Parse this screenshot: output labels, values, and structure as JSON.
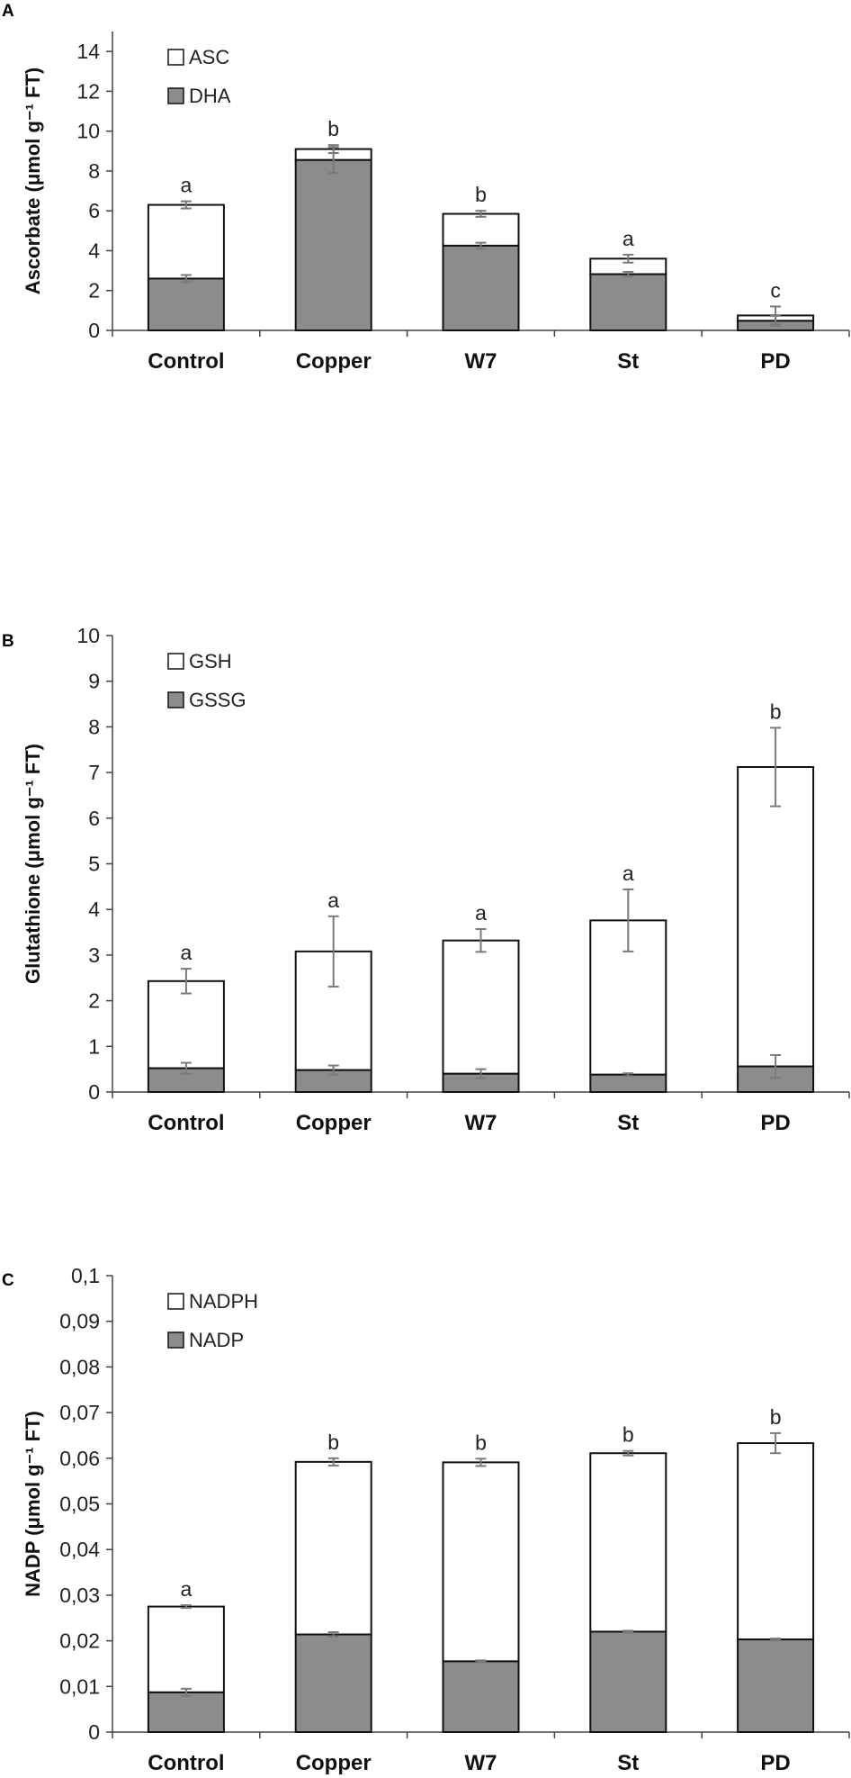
{
  "chart_data": [
    {
      "panel": "A",
      "type": "bar",
      "stacked": true,
      "categories": [
        "Control",
        "Copper",
        "W7",
        "St",
        "PD"
      ],
      "series": [
        {
          "name": "DHA",
          "color": "#8c8c8c",
          "values": [
            2.6,
            8.55,
            4.25,
            2.82,
            0.48
          ],
          "errors": [
            0.18,
            0.65,
            0.15,
            0.12,
            0.25
          ]
        },
        {
          "name": "ASC",
          "color": "#ffffff",
          "values": [
            3.7,
            0.55,
            1.6,
            0.78,
            0.27
          ],
          "errors": [
            0.18,
            0.2,
            0.15,
            0.2,
            0.45
          ]
        }
      ],
      "letters": [
        "a",
        "b",
        "b",
        "a",
        "c"
      ],
      "ylabel": "Ascorbate (μmol g⁻¹ FT)",
      "ylim": [
        0,
        15
      ],
      "yticks": [
        0,
        2,
        4,
        6,
        8,
        10,
        12,
        14
      ],
      "ytick_labels": [
        "0",
        "2",
        "4",
        "6",
        "8",
        "10",
        "12",
        "14"
      ],
      "legend_position": "top-left",
      "legend_order": [
        "ASC",
        "DHA"
      ]
    },
    {
      "panel": "B",
      "type": "bar",
      "stacked": true,
      "categories": [
        "Control",
        "Copper",
        "W7",
        "St",
        "PD"
      ],
      "series": [
        {
          "name": "GSSG",
          "color": "#8c8c8c",
          "values": [
            0.52,
            0.48,
            0.4,
            0.38,
            0.56
          ],
          "errors": [
            0.12,
            0.1,
            0.1,
            0.03,
            0.25
          ]
        },
        {
          "name": "GSH",
          "color": "#ffffff",
          "values": [
            1.91,
            2.6,
            2.92,
            3.38,
            6.56
          ],
          "errors": [
            0.27,
            0.77,
            0.25,
            0.68,
            0.86
          ]
        }
      ],
      "letters": [
        "a",
        "a",
        "a",
        "a",
        "b"
      ],
      "ylabel": "Glutathione (μmol g⁻¹ FT)",
      "ylim": [
        0,
        10
      ],
      "yticks": [
        0,
        1,
        2,
        3,
        4,
        5,
        6,
        7,
        8,
        9,
        10
      ],
      "ytick_labels": [
        "0",
        "1",
        "2",
        "3",
        "4",
        "5",
        "6",
        "7",
        "8",
        "9",
        "10"
      ],
      "legend_position": "top-left",
      "legend_order": [
        "GSH",
        "GSSG"
      ]
    },
    {
      "panel": "C",
      "type": "bar",
      "stacked": true,
      "categories": [
        "Control",
        "Copper",
        "W7",
        "St",
        "PD"
      ],
      "series": [
        {
          "name": "NADP",
          "color": "#8c8c8c",
          "values": [
            0.0087,
            0.0214,
            0.0155,
            0.022,
            0.0203
          ],
          "errors": [
            0.0008,
            0.0005,
            0.0002,
            0.0002,
            0.0002
          ]
        },
        {
          "name": "NADPH",
          "color": "#ffffff",
          "values": [
            0.0188,
            0.0378,
            0.0436,
            0.0391,
            0.043
          ],
          "errors": [
            0.0003,
            0.0008,
            0.0008,
            0.0005,
            0.0022
          ]
        }
      ],
      "letters": [
        "a",
        "b",
        "b",
        "b",
        "b"
      ],
      "ylabel": "NADP (μmol g⁻¹ FT)",
      "ylim": [
        0,
        0.1
      ],
      "yticks": [
        0,
        0.01,
        0.02,
        0.03,
        0.04,
        0.05,
        0.06,
        0.07,
        0.08,
        0.09,
        0.1
      ],
      "ytick_labels": [
        "0",
        "0,01",
        "0,02",
        "0,03",
        "0,04",
        "0,05",
        "0,06",
        "0,07",
        "0,08",
        "0,09",
        "0,1"
      ],
      "legend_position": "top-left",
      "legend_order": [
        "NADPH",
        "NADP"
      ]
    }
  ]
}
